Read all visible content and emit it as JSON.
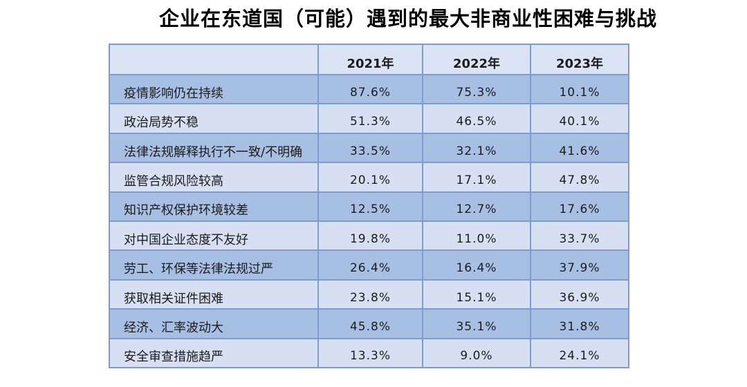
{
  "title": "企业在东道国（可能）遇到的最大非商业性困难与挑战",
  "colors": {
    "border-color": "#7e9bd1",
    "header-bg": "#dbe4f4",
    "row-dark": "#a8bfe4",
    "row-light": "#d7e0f2",
    "page-bg": "#ffffff",
    "text-color": "#1b1b1b"
  },
  "chart_data": {
    "type": "table",
    "title": "企业在东道国（可能）遇到的最大非商业性困难与挑战",
    "columns": [
      "",
      "2021年",
      "2022年",
      "2023年"
    ],
    "rows": [
      {
        "label": "疫情影响仍在持续",
        "values": [
          "87.6%",
          "75.3%",
          "10.1%"
        ]
      },
      {
        "label": "政治局势不稳",
        "values": [
          "51.3%",
          "46.5%",
          "40.1%"
        ]
      },
      {
        "label": "法律法规解释执行不一致/不明确",
        "values": [
          "33.5%",
          "32.1%",
          "41.6%"
        ]
      },
      {
        "label": "监管合规风险较高",
        "values": [
          "20.1%",
          "17.1%",
          "47.8%"
        ]
      },
      {
        "label": "知识产权保护环境较差",
        "values": [
          "12.5%",
          "12.7%",
          "17.6%"
        ]
      },
      {
        "label": "对中国企业态度不友好",
        "values": [
          "19.8%",
          "11.0%",
          "33.7%"
        ]
      },
      {
        "label": "劳工、环保等法律法规过严",
        "values": [
          "26.4%",
          "16.4%",
          "37.9%"
        ]
      },
      {
        "label": "获取相关证件困难",
        "values": [
          "23.8%",
          "15.1%",
          "36.9%"
        ]
      },
      {
        "label": "经济、汇率波动大",
        "values": [
          "45.8%",
          "35.1%",
          "31.8%"
        ]
      },
      {
        "label": "安全审查措施趋严",
        "values": [
          "13.3%",
          "9.0%",
          "24.1%"
        ]
      }
    ],
    "layout": {
      "striped": "alternating dark/light blue starting dark",
      "grid": true,
      "value_alignment": "center",
      "label_alignment": "left"
    }
  }
}
